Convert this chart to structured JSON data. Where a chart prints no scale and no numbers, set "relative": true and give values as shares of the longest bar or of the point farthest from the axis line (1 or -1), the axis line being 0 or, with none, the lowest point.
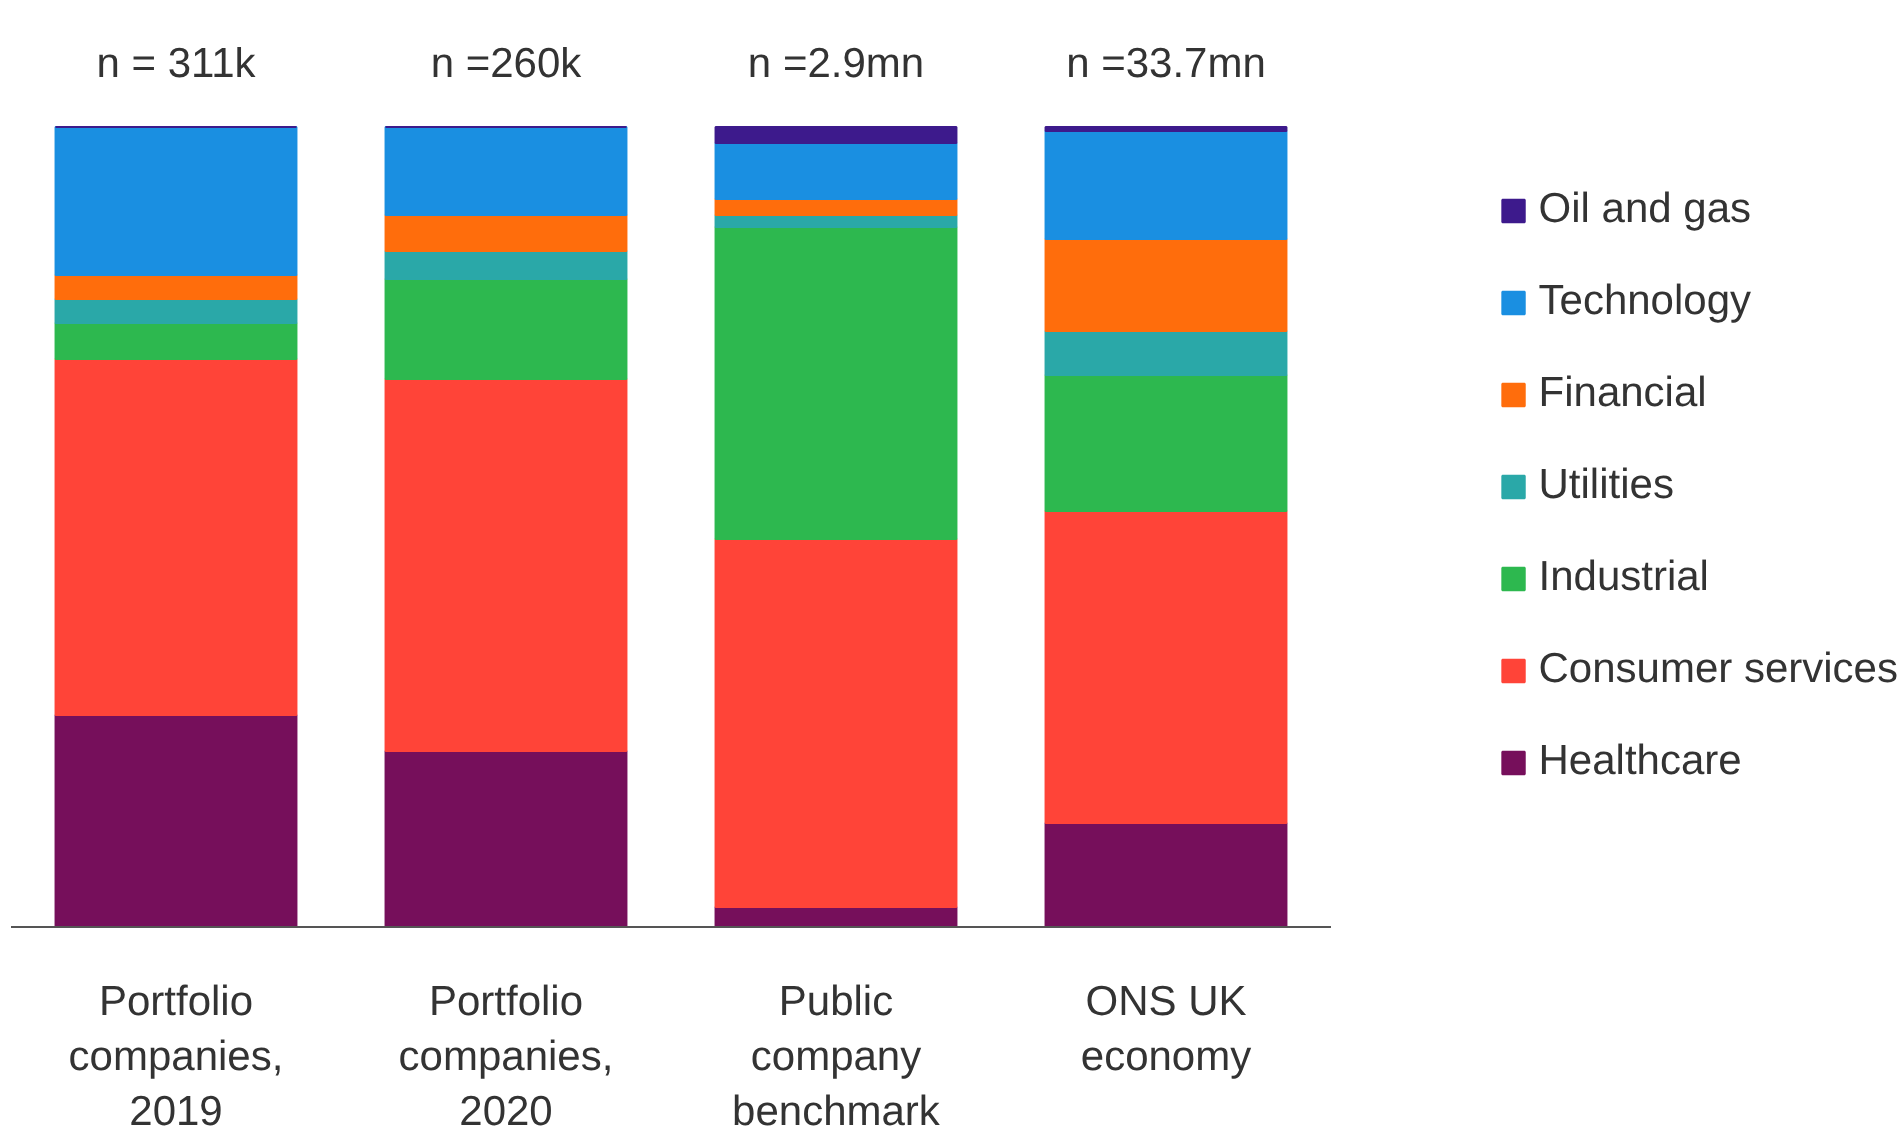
{
  "chart_data": {
    "type": "bar",
    "stacked": true,
    "relative": true,
    "legend": "right",
    "categories": [
      "Portfolio companies, 2019",
      "Portfolio companies, 2020",
      "Public company benchmark",
      "ONS UK economy"
    ],
    "series": [
      {
        "name": "Healthcare",
        "color": "#760f5b",
        "values": [
          0.265,
          0.22,
          0.025,
          0.13
        ]
      },
      {
        "name": "Consumer services",
        "color": "#ff4438",
        "values": [
          0.445,
          0.465,
          0.46,
          0.39
        ]
      },
      {
        "name": "Industrial",
        "color": "#2db84f",
        "values": [
          0.045,
          0.125,
          0.39,
          0.17
        ]
      },
      {
        "name": "Utilities",
        "color": "#2aa8a8",
        "values": [
          0.03,
          0.035,
          0.015,
          0.055
        ]
      },
      {
        "name": "Financial",
        "color": "#ff6d0c",
        "values": [
          0.03,
          0.045,
          0.02,
          0.115
        ]
      },
      {
        "name": "Technology",
        "color": "#1a8fe1",
        "values": [
          0.185,
          0.11,
          0.07,
          0.135
        ]
      },
      {
        "name": "Oil and gas",
        "color": "#3d1a8c",
        "values": [
          0,
          0,
          0.02,
          0.005
        ]
      }
    ],
    "annotations": [
      "n = 311k",
      "n =260k",
      "n =2.9mn",
      "n =33.7mn"
    ]
  }
}
